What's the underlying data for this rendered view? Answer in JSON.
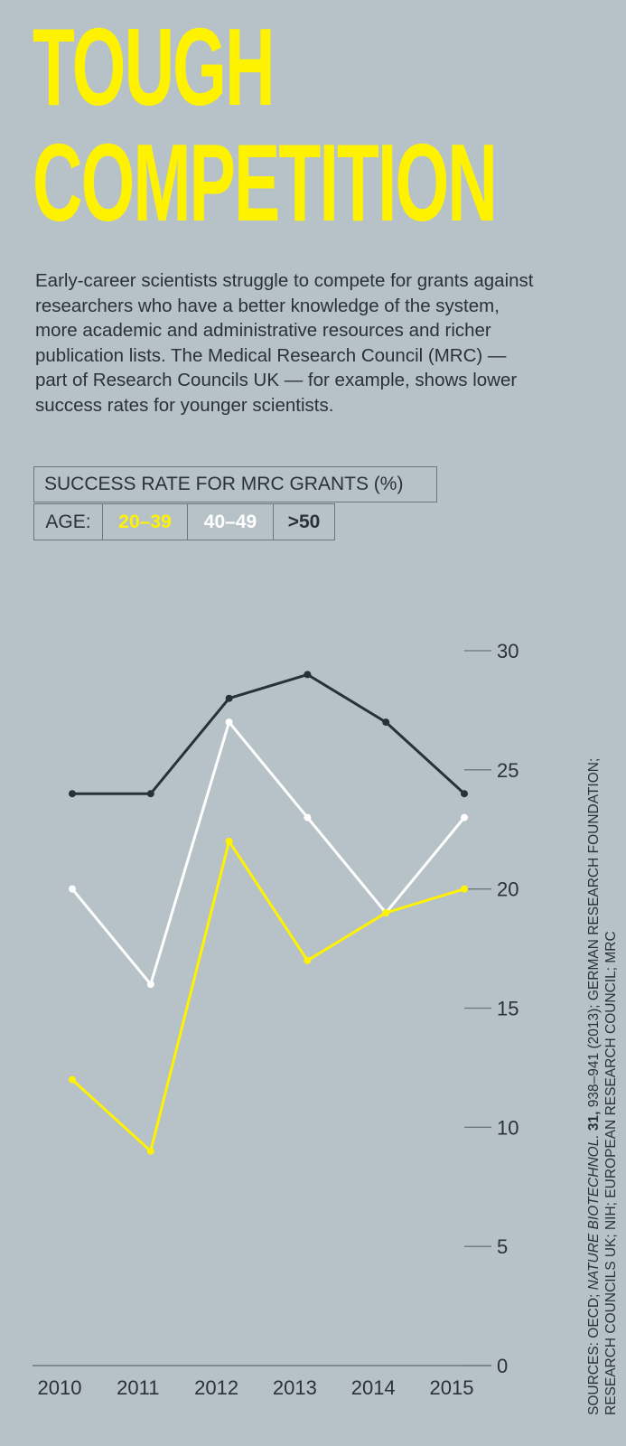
{
  "title_line1": "TOUGH",
  "title_line2": "COMPETITION",
  "intro": "Early-career scientists struggle to compete for grants against researchers who have a better knowledge of the system, more academic and administrative resources and richer publication lists. The Medical Research Council (MRC) — part of Research Councils UK — for example, shows lower success rates for younger scientists.",
  "legend": {
    "title": "SUCCESS RATE FOR MRC GRANTS (%)",
    "age_label": "AGE:",
    "groups": [
      "20–39",
      "40–49",
      ">50"
    ]
  },
  "sources": {
    "line1_prefix": "SOURCES: OECD; ",
    "line1_journal": "NATURE BIOTECHNOL.",
    "line1_volume": " 31,",
    "line1_rest": " 938–941 (2013); GERMAN RESEARCH FOUNDATION;",
    "line2": "RESEARCH COUNCILS UK; NIH; EUROPEAN RESEARCH COUNCIL; MRC"
  },
  "colors": {
    "background": "#b6c2c8",
    "title": "#fff200",
    "young": "#fff200",
    "mid": "#ffffff",
    "old": "#263238",
    "axis": "#6c777d"
  },
  "chart_data": {
    "type": "line",
    "title": "SUCCESS RATE FOR MRC GRANTS (%)",
    "x": [
      "2010",
      "2011",
      "2012",
      "2013",
      "2014",
      "2015"
    ],
    "series": [
      {
        "name": "20–39",
        "values": [
          12,
          9,
          22,
          17,
          19,
          20
        ],
        "color": "#fff200"
      },
      {
        "name": "40–49",
        "values": [
          20,
          16,
          27,
          23,
          19,
          23
        ],
        "color": "#ffffff"
      },
      {
        "name": ">50",
        "values": [
          24,
          24,
          28,
          29,
          27,
          24
        ],
        "color": "#263238"
      }
    ],
    "yticks": [
      0,
      5,
      10,
      15,
      20,
      25,
      30
    ],
    "ylim": [
      0,
      30
    ],
    "y_axis_side": "right",
    "grid": false,
    "legend_position": "top"
  }
}
